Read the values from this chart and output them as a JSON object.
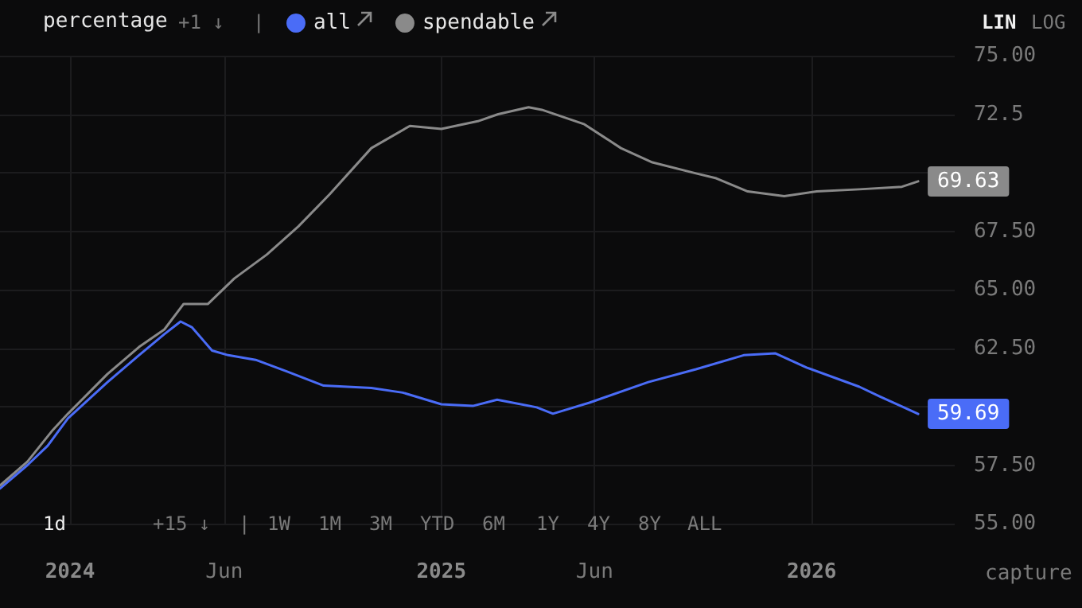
{
  "chart_data": {
    "type": "line",
    "legend_title": "percentage",
    "legend": "top left",
    "grid": true,
    "marker": "none",
    "xlim": [
      "2023-10-24",
      "2026-05-22"
    ],
    "xticks": [
      {
        "value": "2024-01-01",
        "label": "2024"
      },
      {
        "value": "2024-06-01",
        "label": "Jun"
      },
      {
        "value": "2025-01-01",
        "label": "2025"
      },
      {
        "value": "2025-06-01",
        "label": "Jun"
      },
      {
        "value": "2026-01-01",
        "label": "2026"
      }
    ],
    "ylim": [
      55,
      75
    ],
    "yticks": [
      {
        "value": 55,
        "label": "55.00"
      },
      {
        "value": 57.5,
        "label": "57.50"
      },
      {
        "value": 60,
        "label": null
      },
      {
        "value": 62.5,
        "label": "62.50"
      },
      {
        "value": 65,
        "label": "65.00"
      },
      {
        "value": 67.5,
        "label": "67.50"
      },
      {
        "value": 70,
        "label": null
      },
      {
        "value": 72.5,
        "label": "72.5"
      },
      {
        "value": 75,
        "label": "75.00"
      }
    ],
    "series": [
      {
        "name": "all",
        "color": "#4a6cf7",
        "x": [
          "2023-10-24",
          "2023-11-20",
          "2023-12-10",
          "2023-12-30",
          "2024-02-07",
          "2024-03-09",
          "2024-04-03",
          "2024-04-19",
          "2024-04-30",
          "2024-05-20",
          "2024-06-05",
          "2024-07-02",
          "2024-08-02",
          "2024-09-07",
          "2024-10-24",
          "2024-11-24",
          "2025-01-01",
          "2025-02-01",
          "2025-02-25",
          "2025-04-05",
          "2025-04-21",
          "2025-05-27",
          "2025-07-24",
          "2025-09-09",
          "2025-10-26",
          "2025-11-26",
          "2025-12-27",
          "2026-02-17",
          "2026-03-09",
          "2026-04-16"
        ],
        "values": [
          56.5,
          57.5,
          58.33,
          59.5,
          61.05,
          62.2,
          63.1,
          63.64,
          63.4,
          62.4,
          62.2,
          62.0,
          61.5,
          60.9,
          60.8,
          60.6,
          60.1,
          60.03,
          60.3,
          59.97,
          59.7,
          60.17,
          61.05,
          61.6,
          62.2,
          62.28,
          61.67,
          60.85,
          60.44,
          59.69
        ],
        "value_labels": [
          null,
          null,
          null,
          null,
          null,
          null,
          null,
          null,
          null,
          null,
          null,
          null,
          null,
          null,
          null,
          null,
          null,
          null,
          null,
          null,
          null,
          null,
          null,
          null,
          null,
          null,
          null,
          null,
          null,
          "59.69"
        ]
      },
      {
        "name": "spendable",
        "color": "#8a8a8a",
        "x": [
          "2023-10-24",
          "2023-11-20",
          "2023-12-15",
          "2023-12-30",
          "2024-02-07",
          "2024-03-09",
          "2024-04-03",
          "2024-04-22",
          "2024-05-16",
          "2024-06-11",
          "2024-07-13",
          "2024-08-13",
          "2024-09-13",
          "2024-10-24",
          "2024-12-01",
          "2025-01-01",
          "2025-02-06",
          "2025-02-26",
          "2025-03-28",
          "2025-04-10",
          "2025-05-22",
          "2025-06-27",
          "2025-07-28",
          "2025-09-09",
          "2025-09-29",
          "2025-10-30",
          "2025-12-05",
          "2026-01-06",
          "2026-02-17",
          "2026-03-31",
          "2026-04-16"
        ],
        "values": [
          56.63,
          57.65,
          59.0,
          59.7,
          61.4,
          62.55,
          63.3,
          64.39,
          64.39,
          65.48,
          66.5,
          67.7,
          69.08,
          71.05,
          72.0,
          71.87,
          72.2,
          72.5,
          72.8,
          72.69,
          72.07,
          71.05,
          70.44,
          69.97,
          69.76,
          69.2,
          69.0,
          69.2,
          69.29,
          69.4,
          69.63
        ],
        "value_labels": [
          null,
          null,
          null,
          null,
          null,
          null,
          null,
          null,
          null,
          null,
          null,
          null,
          null,
          null,
          null,
          null,
          null,
          null,
          null,
          null,
          null,
          null,
          null,
          null,
          null,
          null,
          null,
          null,
          null,
          null,
          "69.63"
        ]
      }
    ],
    "annotations": [
      "+1 ↓",
      "|",
      "LIN",
      "LOG",
      "1d",
      "+15 ↓",
      "|",
      "1W",
      "1M",
      "3M",
      "YTD",
      "6M",
      "1Y",
      "4Y",
      "8Y",
      "ALL",
      "capture"
    ]
  }
}
